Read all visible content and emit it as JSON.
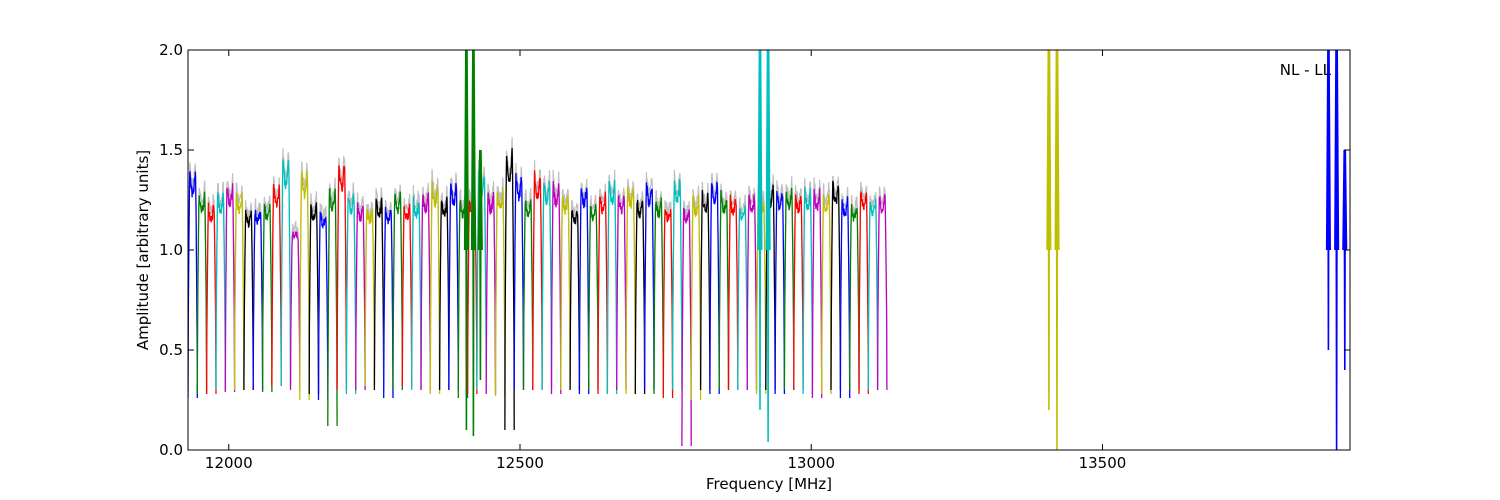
{
  "chart_data": {
    "type": "line",
    "title": "",
    "xlabel": "Frequency [MHz]",
    "ylabel": "Amplitude [arbitrary units]",
    "annotation": "NL - LL",
    "xlim": [
      11930,
      13925
    ],
    "ylim": [
      0.0,
      2.0
    ],
    "xticks": [
      12000,
      12500,
      13000,
      13500
    ],
    "xtick_labels": [
      "12000",
      "12500",
      "13000",
      "13500"
    ],
    "yticks": [
      0.0,
      0.5,
      1.0,
      1.5,
      2.0
    ],
    "ytick_labels": [
      "0.0",
      "0.5",
      "1.0",
      "1.5",
      "2.0"
    ],
    "grid": false,
    "colors": [
      "#0000ff",
      "#008000",
      "#ff0000",
      "#00bfbf",
      "#bf00bf",
      "#bfbf00",
      "#000000"
    ],
    "raw_color": "#bfbfbf",
    "subband_width_MHz": 16,
    "subband_start_MHz": 11930,
    "subband_peak_levels": [
      1.4,
      1.28,
      1.22,
      1.28,
      1.33,
      1.28,
      1.18,
      1.2,
      1.22,
      1.33,
      1.46,
      1.08,
      1.4,
      1.22,
      1.18,
      1.3,
      1.45,
      1.28,
      1.22,
      1.2,
      1.25,
      1.2,
      1.28,
      1.22,
      1.25,
      1.28,
      1.33,
      1.25,
      1.34,
      1.25,
      1.25,
      1.39,
      1.28,
      1.3,
      1.5,
      1.38,
      1.25,
      1.39,
      1.35,
      1.33,
      1.28,
      1.2,
      1.33,
      1.22,
      1.28,
      1.34,
      1.28,
      1.32,
      1.25,
      1.34,
      1.25,
      1.22,
      1.35,
      1.2,
      1.26,
      1.28,
      1.34,
      1.28,
      1.26,
      1.22,
      1.28,
      1.25,
      1.33,
      1.3,
      1.3,
      1.28,
      1.3,
      1.3,
      1.28,
      1.34,
      1.25,
      1.22,
      1.3,
      1.25,
      1.27
    ],
    "subband_trough_levels": [
      0.26,
      0.28,
      0.28,
      0.3,
      0.29,
      0.3,
      0.3,
      0.3,
      0.29,
      0.32,
      0.32,
      0.3,
      0.25,
      0.28,
      0.25,
      0.12,
      0.3,
      0.28,
      0.3,
      0.32,
      0.3,
      0.26,
      0.3,
      0.32,
      0.3,
      0.3,
      0.28,
      0.3,
      0.3,
      0.26,
      0.28,
      0.3,
      0.28,
      0.27,
      0.1,
      0.3,
      0.3,
      0.3,
      0.3,
      0.28,
      0.3,
      0.3,
      0.28,
      0.3,
      0.28,
      0.28,
      0.3,
      0.28,
      0.28,
      0.3,
      0.28,
      0.26,
      0.3,
      0.02,
      0.25,
      0.3,
      0.28,
      0.3,
      0.3,
      0.3,
      0.3,
      0.28,
      0.3,
      0.28,
      0.3,
      0.3,
      0.28,
      0.26,
      0.28,
      0.3,
      0.26,
      0.3,
      0.28,
      0.3,
      0.3
    ],
    "spikes": [
      {
        "x": 12408,
        "ymin": 0.1,
        "ymax": 2.0,
        "color": "#008000"
      },
      {
        "x": 12420,
        "ymin": 0.07,
        "ymax": 2.0,
        "color": "#008000"
      },
      {
        "x": 12432,
        "ymin": 0.35,
        "ymax": 1.5,
        "color": "#008000"
      },
      {
        "x": 12912,
        "ymin": 0.2,
        "ymax": 2.0,
        "color": "#00bfbf"
      },
      {
        "x": 12926,
        "ymin": 0.04,
        "ymax": 2.0,
        "color": "#00bfbf"
      },
      {
        "x": 13408,
        "ymin": 0.2,
        "ymax": 2.0,
        "color": "#bfbf00"
      },
      {
        "x": 13422,
        "ymin": 0.0,
        "ymax": 2.0,
        "color": "#bfbf00"
      },
      {
        "x": 13888,
        "ymin": 0.5,
        "ymax": 2.0,
        "color": "#0000ff"
      },
      {
        "x": 13902,
        "ymin": 0.0,
        "ymax": 2.0,
        "color": "#0000ff"
      },
      {
        "x": 13916,
        "ymin": 0.4,
        "ymax": 1.5,
        "color": "#0000ff"
      }
    ]
  }
}
